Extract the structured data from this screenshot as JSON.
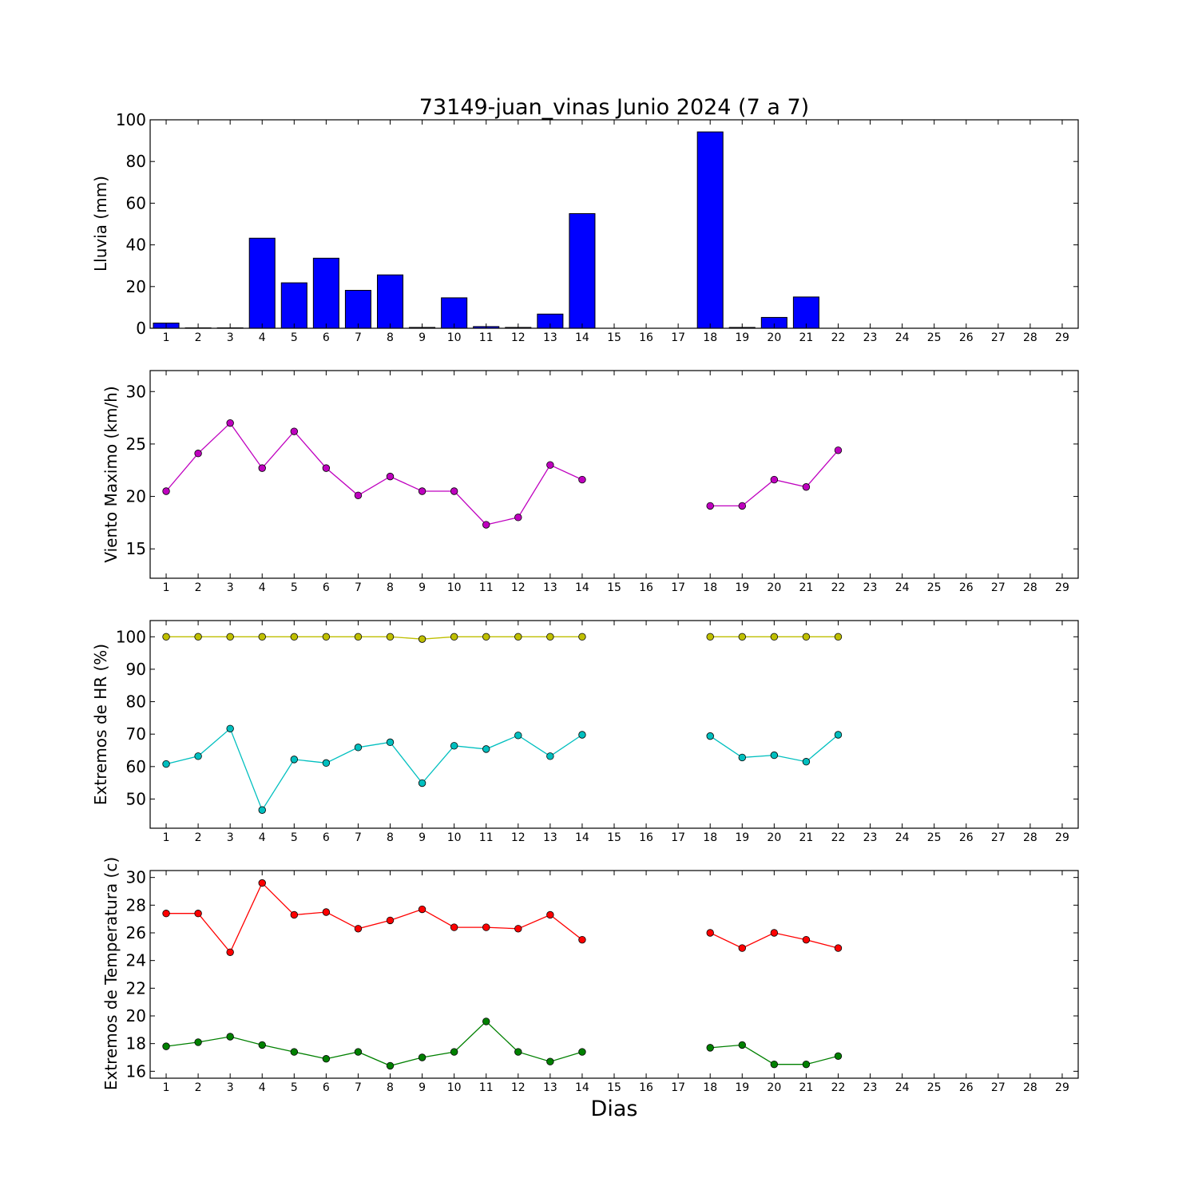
{
  "chart_data": [
    {
      "type": "bar",
      "title": "73149-juan_vinas Junio 2024  (7 a 7)",
      "ylabel": "Lluvia (mm)",
      "ylim": [
        0,
        100
      ],
      "yticks": [
        0,
        20,
        40,
        60,
        80,
        100
      ],
      "xlim": [
        0.5,
        29.5
      ],
      "categories": [
        1,
        2,
        3,
        4,
        5,
        6,
        7,
        8,
        9,
        10,
        11,
        12,
        13,
        14,
        15,
        16,
        17,
        18,
        19,
        20,
        21,
        22,
        23,
        24,
        25,
        26,
        27,
        28,
        29
      ],
      "values": [
        2.5,
        0.2,
        0.2,
        43.2,
        21.8,
        33.6,
        18.2,
        25.6,
        0.4,
        14.6,
        0.8,
        0.4,
        6.8,
        55.0,
        0,
        0,
        0,
        94.2,
        0.4,
        5.2,
        15.0,
        0,
        0,
        0,
        0,
        0,
        0,
        0,
        0
      ],
      "color": "#0000ff"
    },
    {
      "type": "line",
      "ylabel": "Viento Maximo (km/h)",
      "ylim": [
        12.2,
        32
      ],
      "yticks": [
        15,
        20,
        25,
        30
      ],
      "xlim": [
        0.5,
        29.5
      ],
      "xticks": [
        1,
        2,
        3,
        4,
        5,
        6,
        7,
        8,
        9,
        10,
        11,
        12,
        13,
        14,
        15,
        16,
        17,
        18,
        19,
        20,
        21,
        22,
        23,
        24,
        25,
        26,
        27,
        28,
        29
      ],
      "series": [
        {
          "color": "#bf00bf",
          "x": [
            1,
            2,
            3,
            4,
            5,
            6,
            7,
            8,
            9,
            10,
            11,
            12,
            13,
            14,
            15,
            16,
            17,
            18,
            19,
            20,
            21,
            22
          ],
          "y": [
            20.5,
            24.1,
            27.0,
            22.7,
            26.2,
            22.7,
            20.1,
            21.9,
            20.5,
            20.5,
            17.3,
            18.0,
            23.0,
            21.6,
            null,
            null,
            null,
            19.1,
            19.1,
            21.6,
            20.9,
            24.4
          ]
        }
      ]
    },
    {
      "type": "line",
      "ylabel": "Extremos de HR (%)",
      "ylim": [
        41,
        105
      ],
      "yticks": [
        50,
        60,
        70,
        80,
        90,
        100
      ],
      "xlim": [
        0.5,
        29.5
      ],
      "xticks": [
        1,
        2,
        3,
        4,
        5,
        6,
        7,
        8,
        9,
        10,
        11,
        12,
        13,
        14,
        15,
        16,
        17,
        18,
        19,
        20,
        21,
        22,
        23,
        24,
        25,
        26,
        27,
        28,
        29
      ],
      "series": [
        {
          "color": "#bfbf00",
          "x": [
            1,
            2,
            3,
            4,
            5,
            6,
            7,
            8,
            9,
            10,
            11,
            12,
            13,
            14,
            15,
            16,
            17,
            18,
            19,
            20,
            21,
            22
          ],
          "y": [
            100,
            100,
            100,
            100,
            100,
            100,
            100,
            100,
            99.3,
            100,
            100,
            100,
            100,
            100,
            null,
            null,
            null,
            100,
            100,
            100,
            100,
            100
          ]
        },
        {
          "color": "#00bfbf",
          "x": [
            1,
            2,
            3,
            4,
            5,
            6,
            7,
            8,
            9,
            10,
            11,
            12,
            13,
            14,
            15,
            16,
            17,
            18,
            19,
            20,
            21,
            22
          ],
          "y": [
            60.8,
            63.2,
            71.7,
            46.6,
            62.2,
            61.1,
            65.9,
            67.5,
            54.9,
            66.4,
            65.4,
            69.6,
            63.2,
            69.8,
            null,
            null,
            null,
            69.4,
            62.8,
            63.5,
            61.5,
            69.8
          ]
        }
      ]
    },
    {
      "type": "line",
      "ylabel": "Extremos de Temperatura (c)",
      "xlabel": "Dias",
      "ylim": [
        15.5,
        30.5
      ],
      "yticks": [
        16,
        18,
        20,
        22,
        24,
        26,
        28,
        30
      ],
      "xlim": [
        0.5,
        29.5
      ],
      "xticks": [
        1,
        2,
        3,
        4,
        5,
        6,
        7,
        8,
        9,
        10,
        11,
        12,
        13,
        14,
        15,
        16,
        17,
        18,
        19,
        20,
        21,
        22,
        23,
        24,
        25,
        26,
        27,
        28,
        29
      ],
      "series": [
        {
          "color": "#ff0000",
          "x": [
            1,
            2,
            3,
            4,
            5,
            6,
            7,
            8,
            9,
            10,
            11,
            12,
            13,
            14,
            15,
            16,
            17,
            18,
            19,
            20,
            21,
            22
          ],
          "y": [
            27.4,
            27.4,
            24.6,
            29.6,
            27.3,
            27.5,
            26.3,
            26.9,
            27.7,
            26.4,
            26.4,
            26.3,
            27.3,
            25.5,
            null,
            null,
            null,
            26.0,
            24.9,
            26.0,
            25.5,
            24.9
          ]
        },
        {
          "color": "#008000",
          "x": [
            1,
            2,
            3,
            4,
            5,
            6,
            7,
            8,
            9,
            10,
            11,
            12,
            13,
            14,
            15,
            16,
            17,
            18,
            19,
            20,
            21,
            22
          ],
          "y": [
            17.8,
            18.1,
            18.5,
            17.9,
            17.4,
            16.9,
            17.4,
            16.4,
            17.0,
            17.4,
            19.6,
            17.4,
            16.7,
            17.4,
            null,
            null,
            null,
            17.7,
            17.9,
            16.5,
            16.5,
            17.1
          ]
        }
      ]
    }
  ]
}
